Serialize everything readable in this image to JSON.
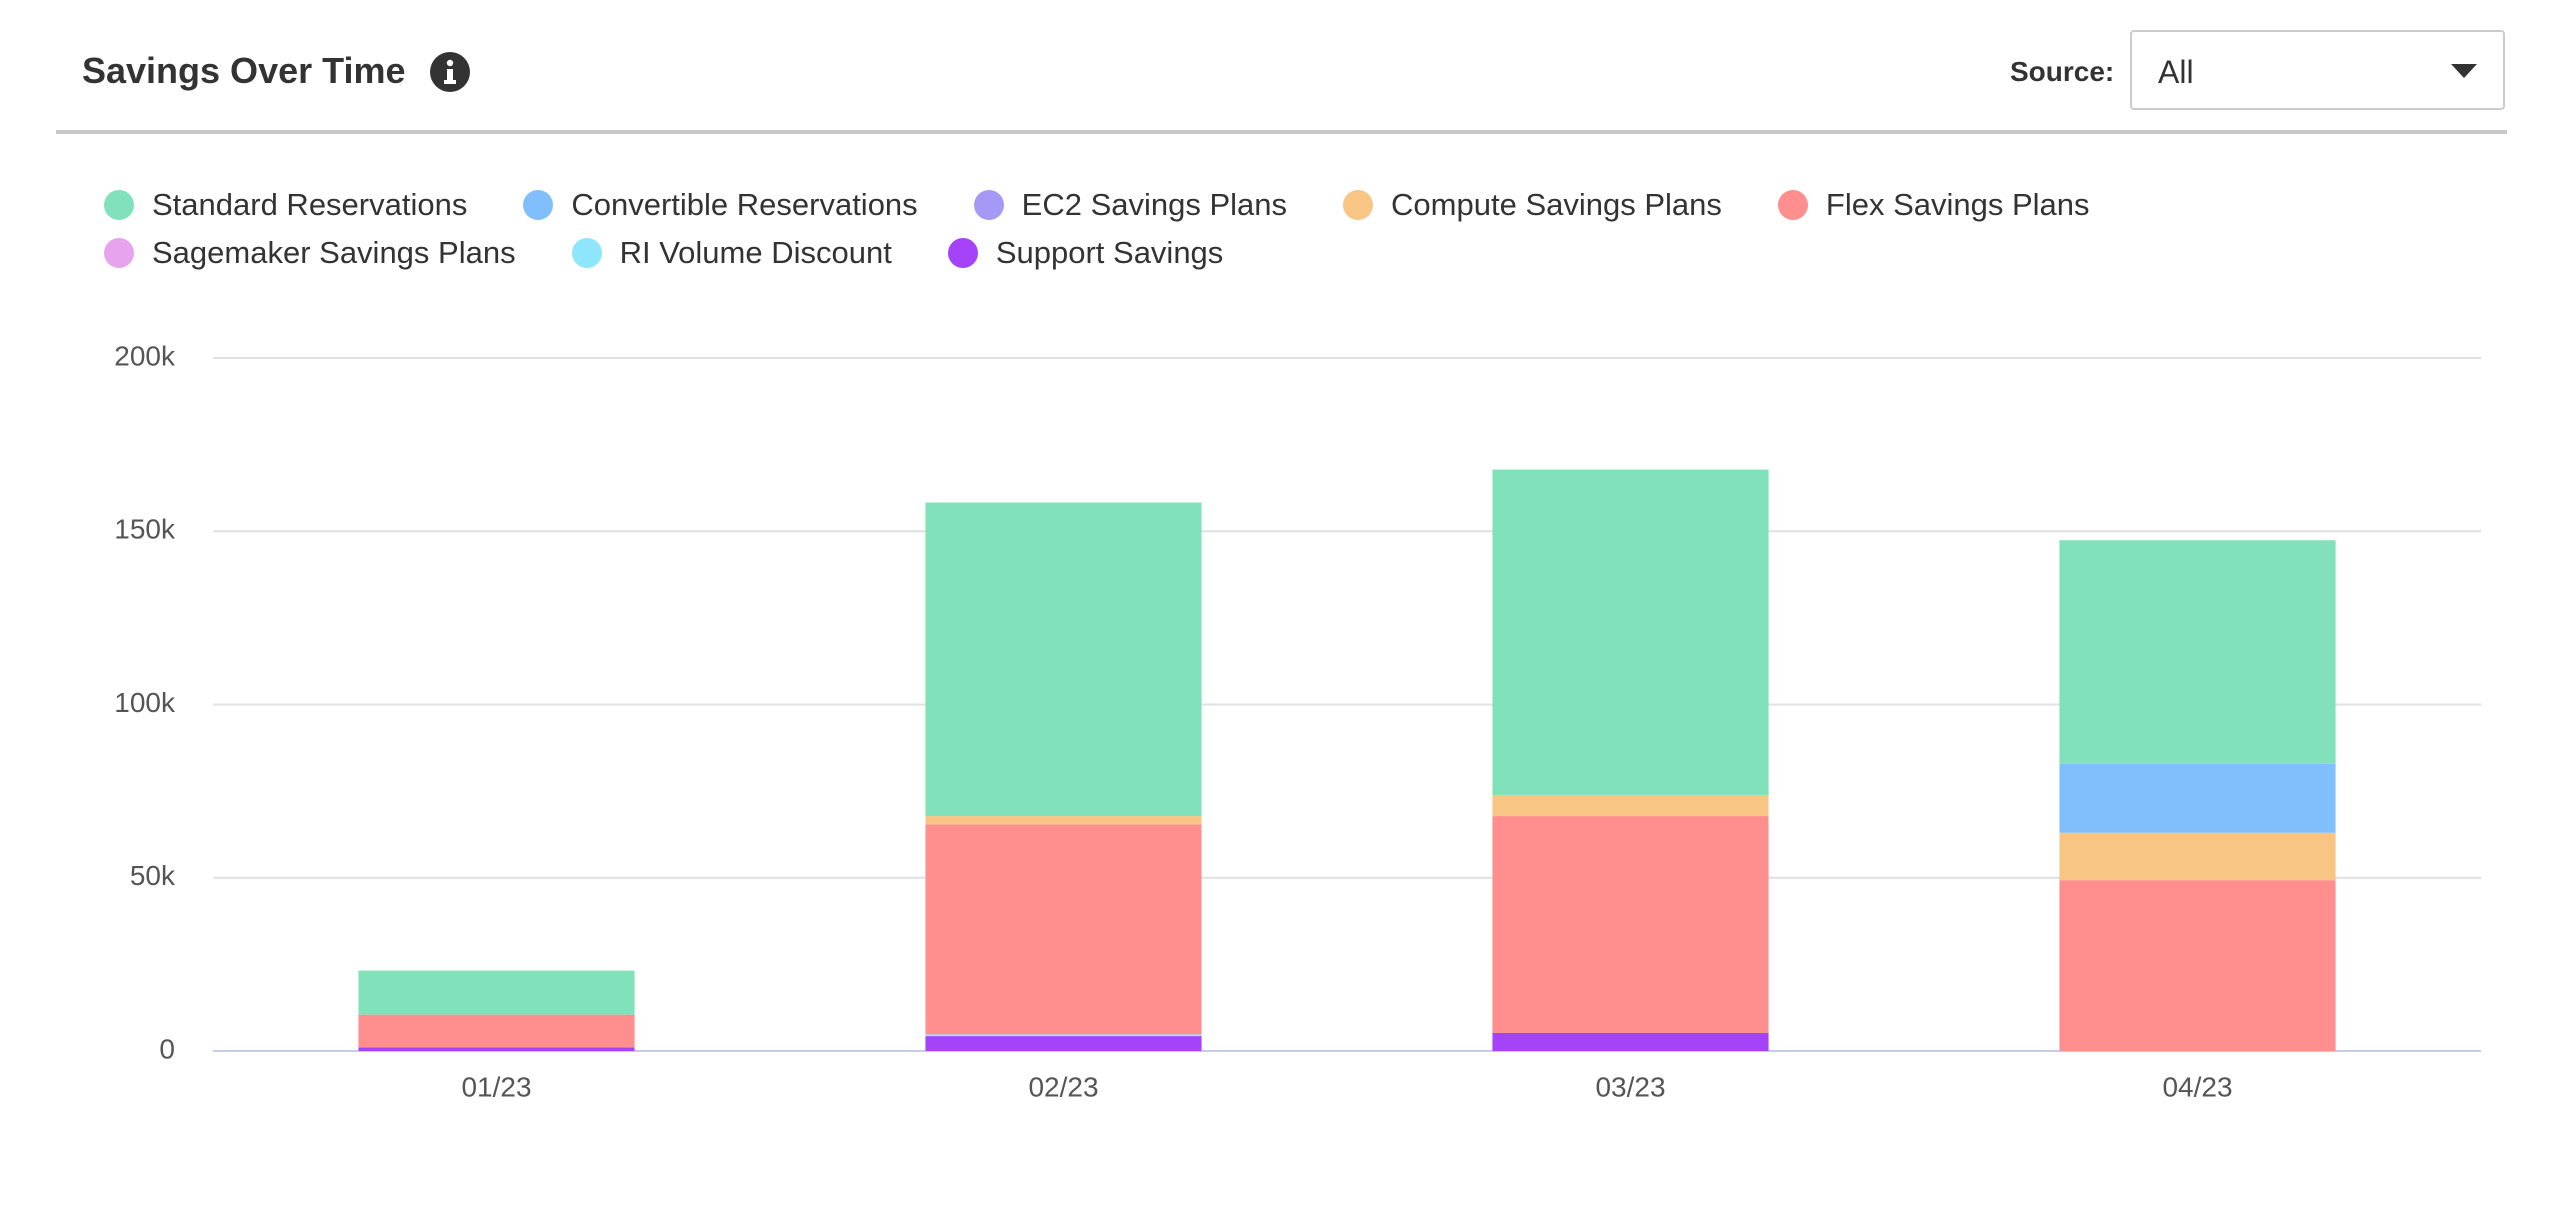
{
  "chart_data": {
    "type": "stacked_bar",
    "title": "Savings Over Time",
    "categories": [
      "01/23",
      "02/23",
      "03/23",
      "04/23"
    ],
    "series": [
      {
        "name": "Standard Reservations",
        "color": "#81e1bb",
        "values": [
          12700,
          90500,
          93900,
          64500
        ]
      },
      {
        "name": "Convertible Reservations",
        "color": "#80bffb",
        "values": [
          0,
          0,
          0,
          19900
        ]
      },
      {
        "name": "EC2 Savings Plans",
        "color": "#a49af5",
        "values": [
          0,
          0,
          0,
          0
        ]
      },
      {
        "name": "Compute Savings Plans",
        "color": "#f8c585",
        "values": [
          0,
          2400,
          6100,
          13700
        ]
      },
      {
        "name": "Flex Savings Plans",
        "color": "#ff8e8e",
        "values": [
          9500,
          60600,
          62600,
          49300
        ]
      },
      {
        "name": "Sagemaker Savings Plans",
        "color": "#e8a3ee",
        "values": [
          0,
          0,
          0,
          0
        ]
      },
      {
        "name": "RI Volume Discount",
        "color": "#8de6fb",
        "values": [
          0,
          500,
          0,
          0
        ]
      },
      {
        "name": "Support Savings",
        "color": "#a543f8",
        "values": [
          1000,
          4300,
          5200,
          0
        ]
      }
    ],
    "ylim": [
      0,
      200000
    ],
    "yticks": [
      0,
      {
        "value": 50000,
        "label": "50k"
      },
      {
        "value": 100000,
        "label": "100k"
      },
      {
        "value": 150000,
        "label": "150k"
      },
      {
        "value": 200000,
        "label": "200k"
      }
    ],
    "grid": true
  },
  "filter": {
    "label": "Source:",
    "value": "All"
  }
}
